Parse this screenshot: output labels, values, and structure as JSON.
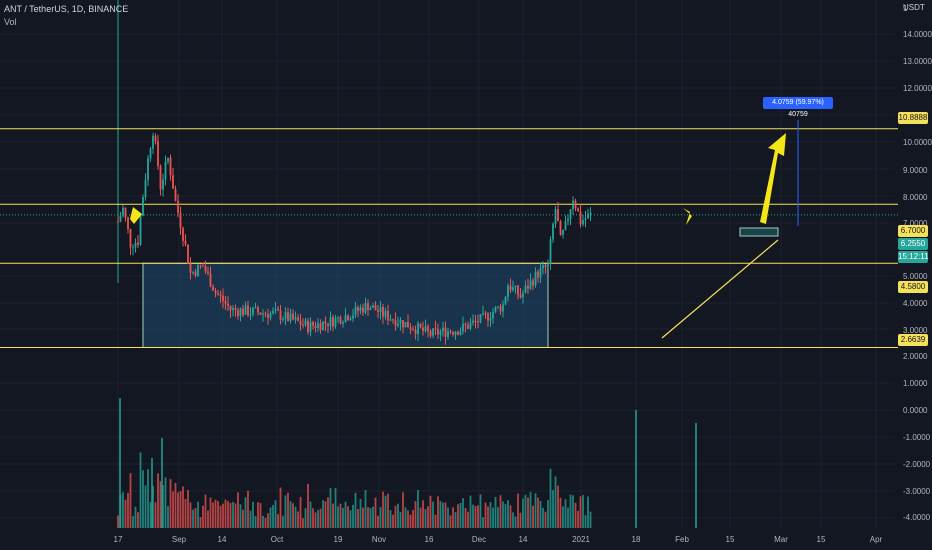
{
  "header": {
    "symbol_line": "ANT / TetherUS, 1D, BINANCE",
    "indicator": "Vol"
  },
  "price_axis": {
    "unit": "USDT",
    "labels": [
      "1",
      "14.0000",
      "13.0000",
      "12.0000",
      "11.0000",
      "10.0000",
      "9.0000",
      "8.0000",
      "7.0000",
      "5.0000",
      "4.0000",
      "3.0000"
    ]
  },
  "volume_axis": {
    "labels": [
      "1.0000",
      "0.0000",
      "-1.0000",
      "-2.0000",
      "-3.0000",
      "-4.0000",
      "2.0000"
    ]
  },
  "tags": {
    "level_1": "10.8888",
    "level_2": "6.7000",
    "current": "6.2550",
    "countdown": "15:12:11",
    "level_3": "4.5800",
    "level_4": "2.6639"
  },
  "measure_label": "4.0759 (59.97%) 40759",
  "time_axis": [
    "17",
    "Sep",
    "14",
    "Oct",
    "19",
    "Nov",
    "16",
    "Dec",
    "14",
    "2021",
    "18",
    "Feb",
    "15",
    "Mar",
    "15",
    "Apr"
  ],
  "colors": {
    "background": "#131722",
    "up": "#26a69a",
    "down": "#ef5350",
    "level_line": "#f5e05a",
    "arrow": "#f5e617",
    "box_fill": "#1e4a6e",
    "measure": "#2962ff"
  },
  "chart_data": {
    "type": "candlestick",
    "price_scale": "log",
    "horizontal_levels": [
      10.8888,
      6.7,
      4.58,
      2.6639
    ],
    "current_price": 6.255,
    "accumulation_box": {
      "low": 2.6639,
      "high": 4.58,
      "from": "Aug 27",
      "to": "Feb 5"
    },
    "price_path": [
      [
        "Aug 17",
        6.0
      ],
      [
        "Aug 19",
        6.5
      ],
      [
        "Aug 22",
        5.2
      ],
      [
        "Aug 25",
        5.3
      ],
      [
        "Aug 28",
        8.0
      ],
      [
        "Aug 31",
        10.8
      ],
      [
        "Sep 3",
        7.5
      ],
      [
        "Sep 6",
        9.0
      ],
      [
        "Sep 9",
        6.8
      ],
      [
        "Sep 12",
        5.5
      ],
      [
        "Sep 15",
        4.3
      ],
      [
        "Sep 20",
        4.5
      ],
      [
        "Sep 25",
        3.8
      ],
      [
        "Oct 1",
        3.4
      ],
      [
        "Oct 10",
        3.35
      ],
      [
        "Oct 20",
        3.3
      ],
      [
        "Nov 1",
        3.05
      ],
      [
        "Nov 10",
        3.15
      ],
      [
        "Nov 20",
        3.35
      ],
      [
        "Nov 25",
        3.5
      ],
      [
        "Dec 1",
        3.3
      ],
      [
        "Dec 10",
        3.1
      ],
      [
        "Dec 20",
        2.9
      ],
      [
        "Dec 25",
        2.95
      ],
      [
        "Jan 1",
        3.0
      ],
      [
        "Jan 10",
        3.2
      ],
      [
        "Jan 18",
        3.5
      ],
      [
        "Jan 20",
        4.0
      ],
      [
        "Jan 25",
        3.7
      ],
      [
        "Feb 1",
        4.3
      ],
      [
        "Feb 5",
        4.5
      ],
      [
        "Feb 8",
        6.5
      ],
      [
        "Feb 10",
        5.3
      ],
      [
        "Feb 12",
        5.8
      ],
      [
        "Feb 15",
        7.0
      ],
      [
        "Feb 18",
        6.0
      ],
      [
        "Feb 22",
        6.255
      ]
    ]
  }
}
